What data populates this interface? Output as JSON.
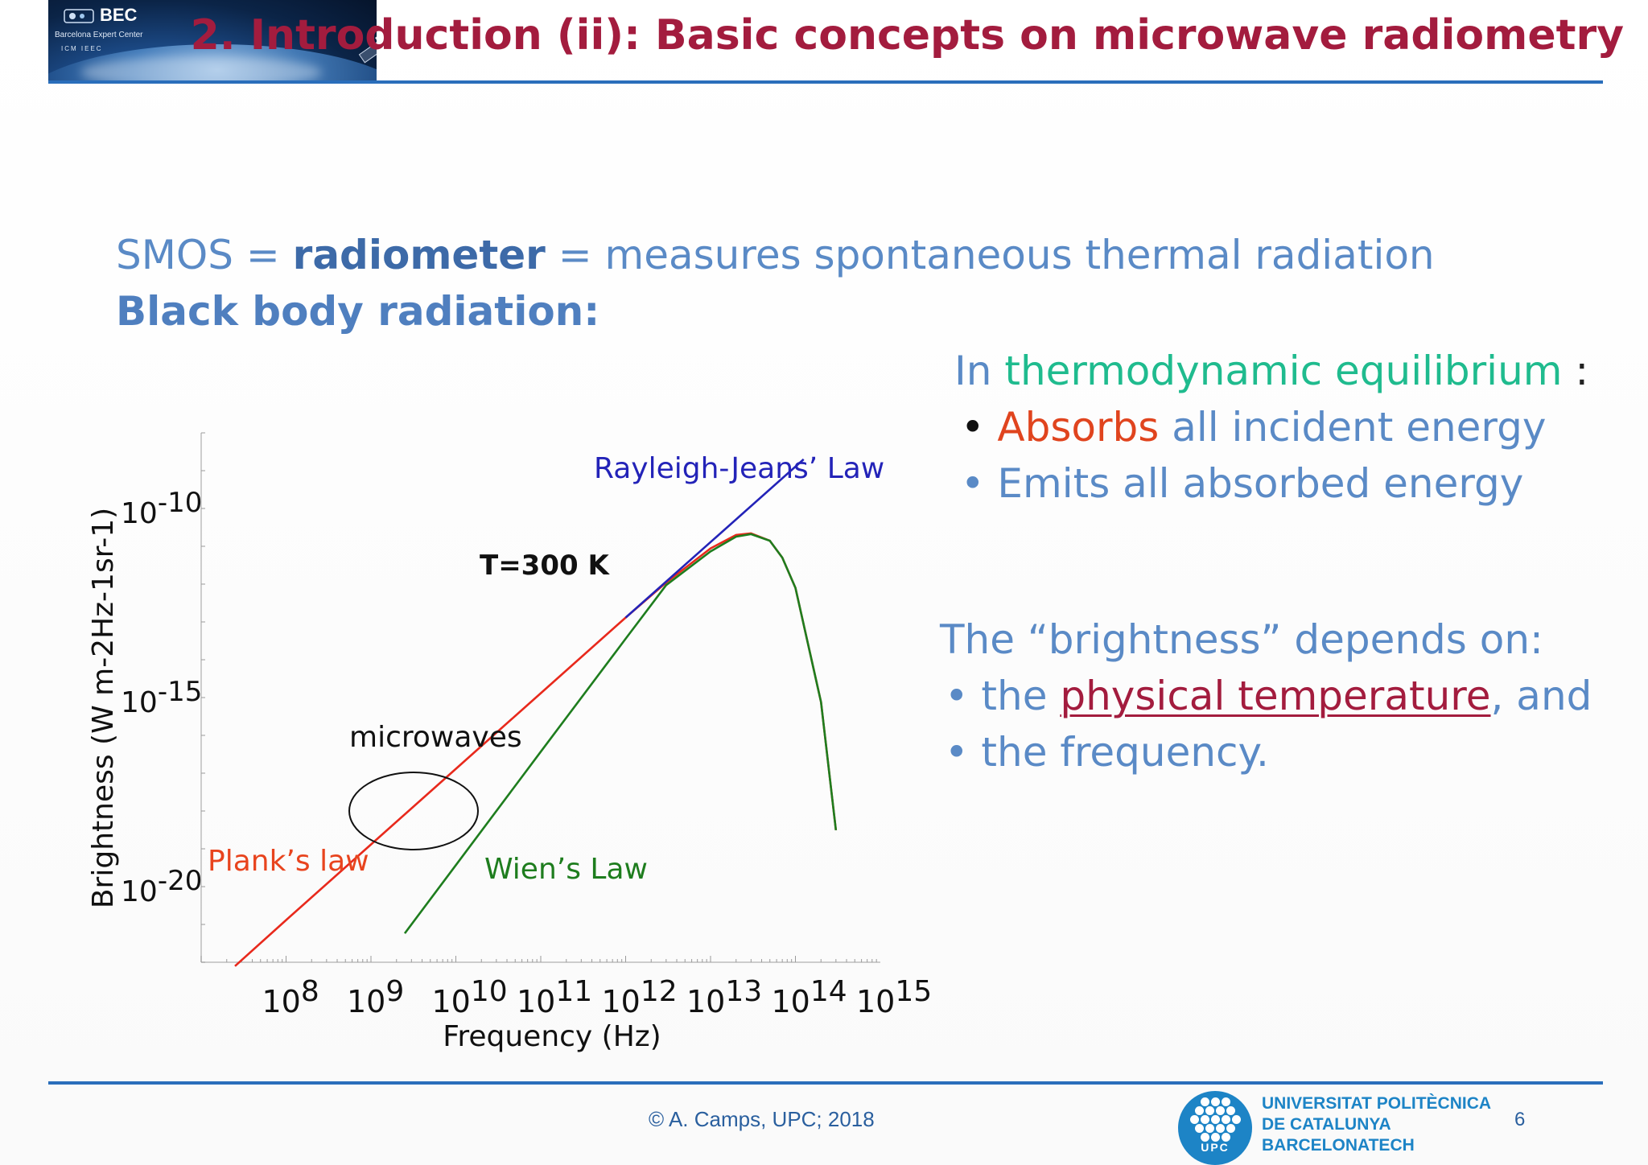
{
  "header": {
    "title": "2. Introduction (ii): Basic concepts on microwave radiometry",
    "logo": {
      "brand": "BEC",
      "subtitle": "Barcelona Expert Center",
      "partners": "ICM   IEEC"
    }
  },
  "body": {
    "line1": {
      "pre": "SMOS = ",
      "bold": "radiometer",
      "post": " = measures spontaneous thermal radiation"
    },
    "line2": "Black body radiation:",
    "equilibrium": {
      "pre": "In ",
      "highlight": "thermodynamic equilibrium",
      "post": " :",
      "bullet": "•",
      "item1_highlight": "Absorbs",
      "item1_rest": " all incident energy",
      "item2": "Emits all absorbed energy"
    },
    "brightness": {
      "intro": "The “brightness” depends on:",
      "bullet": "•",
      "item1_pre": "the ",
      "item1_link": "physical temperature",
      "item1_post": ", and",
      "item2": "the frequency."
    }
  },
  "chart_data": {
    "type": "line",
    "title": "",
    "annotation": "T=300 K",
    "xlabel": "Frequency (Hz)",
    "ylabel": "Brightness (W m-2Hz-1sr-1)",
    "x_scale": "log",
    "y_scale": "log",
    "x_ticks": [
      {
        "base": "10",
        "exp": "8"
      },
      {
        "base": "10",
        "exp": "9"
      },
      {
        "base": "10",
        "exp": "10"
      },
      {
        "base": "10",
        "exp": "11"
      },
      {
        "base": "10",
        "exp": "12"
      },
      {
        "base": "10",
        "exp": "13"
      },
      {
        "base": "10",
        "exp": "14"
      },
      {
        "base": "10",
        "exp": "15"
      }
    ],
    "y_ticks": [
      {
        "base": "10",
        "exp": "-10"
      },
      {
        "base": "10",
        "exp": "-15"
      },
      {
        "base": "10",
        "exp": "-20"
      }
    ],
    "xlim": [
      "1e7",
      "1e15"
    ],
    "ylim": [
      "1e-22",
      "1e-8"
    ],
    "series": [
      {
        "name": "Plank’s law",
        "color": "#e8291c",
        "x": [
          "2.5e7",
          "1e8",
          "1e9",
          "1e10",
          "1e11",
          "1e12",
          "3e12",
          "1e13",
          "2e13",
          "3e13",
          "5e13",
          "7e13",
          "1e14",
          "2e14",
          "3e14"
        ],
        "y": [
          "7.9e-23",
          "1.3e-21",
          "1.3e-19",
          "1.3e-17",
          "1.3e-15",
          "1.3e-13",
          "1.1e-12",
          "8.8e-12",
          "2.0e-11",
          "2.2e-11",
          "1.4e-11",
          "5e-12",
          "8e-13",
          "7.6e-16",
          "3.1e-19"
        ]
      },
      {
        "name": "Wien’s Law",
        "color": "#1e7d1e",
        "x": [
          "2.5e9",
          "1e10",
          "1e11",
          "1e12",
          "3e12",
          "1e13",
          "2e13",
          "3e13",
          "5e13",
          "7e13",
          "1e14",
          "2e14",
          "3e14"
        ],
        "y": [
          "5.8e-22",
          "3.7e-20",
          "3.7e-17",
          "3.6e-14",
          "9.4e-13",
          "7.3e-12",
          "1.8e-11",
          "2.1e-11",
          "1.4e-11",
          "5e-12",
          "8e-13",
          "7.6e-16",
          "3.1e-19"
        ]
      },
      {
        "name": "Rayleigh-Jeans’ Law",
        "color": "#2323b8",
        "x": [
          "1e12",
          "1.25e14"
        ],
        "y": [
          "1.3e-13",
          "2.0e-9"
        ]
      }
    ],
    "annotations": {
      "microwaves": "microwaves"
    }
  },
  "footer": {
    "copyright": "© A. Camps, UPC; 2018",
    "university_line1": "UNIVERSITAT POLITÈCNICA",
    "university_line2": "DE CATALUNYA",
    "university_line3": "BARCELONATECH",
    "upc_letters": "UPC",
    "page_number": "6"
  },
  "colors": {
    "title": "#a31c3e",
    "body_text": "#5a8ac6",
    "rule": "#2a6ebb",
    "green_text": "#1fbb8e",
    "orange_text": "#e0441e"
  }
}
